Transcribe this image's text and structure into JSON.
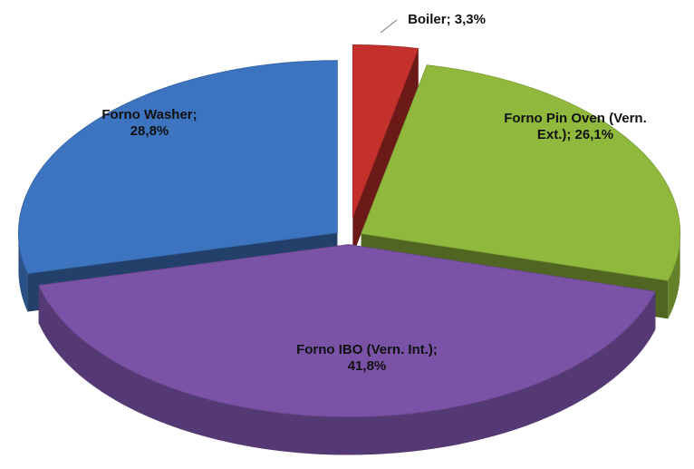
{
  "chart_data": {
    "type": "pie",
    "values": [
      3.3,
      26.1,
      41.8,
      28.8
    ],
    "value_labels": [
      "Boiler; 3,3%",
      "Forno Pin Oven (Vern. Ext.); 26,1%",
      "Forno IBO (Vern. Int.); 41,8%",
      "Forno Washer; 28,8%"
    ],
    "colors": [
      "#c4302c",
      "#8fb83c",
      "#7a52a6",
      "#3d74bf"
    ]
  }
}
